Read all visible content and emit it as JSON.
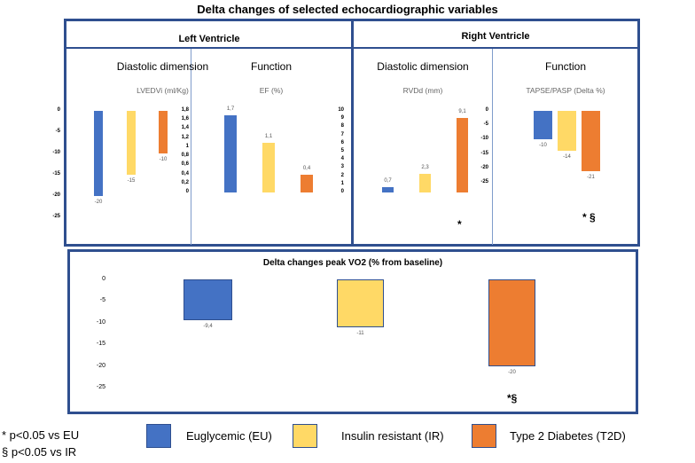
{
  "title": "Delta changes of selected echocardiographic variables",
  "colors": {
    "EU": "#4472C4",
    "IR": "#FFD966",
    "T2D": "#ED7D31"
  },
  "sections": {
    "left": "Left Ventricle",
    "right": "Right Ventricle"
  },
  "chart_data": [
    {
      "id": "lvedvi",
      "type": "bar",
      "section": "Left Ventricle",
      "subtitle": "Diastolic dimension",
      "ylabel": "LVEDVi (ml/Kg)",
      "categories": [
        "EU",
        "IR",
        "T2D"
      ],
      "values": [
        -20,
        -15,
        -10
      ],
      "value_labels": [
        "-20",
        "-15",
        "-10"
      ],
      "ylim": [
        -25,
        0
      ],
      "ticks": [
        "0",
        "-5",
        "-10",
        "-15",
        "-20",
        "-25"
      ],
      "tick_values": [
        0,
        -5,
        -10,
        -15,
        -20,
        -25
      ],
      "annotation": ""
    },
    {
      "id": "ef",
      "type": "bar",
      "section": "Left Ventricle",
      "subtitle": "Function",
      "ylabel": "EF (%)",
      "categories": [
        "EU",
        "IR",
        "T2D"
      ],
      "values": [
        1.7,
        1.1,
        0.4
      ],
      "value_labels": [
        "1,7",
        "1,1",
        "0,4"
      ],
      "ylim": [
        0,
        1.8
      ],
      "ticks": [
        "1,8",
        "1,6",
        "1,4",
        "1,2",
        "1",
        "0,8",
        "0,6",
        "0,4",
        "0,2",
        "0"
      ],
      "tick_values": [
        1.8,
        1.6,
        1.4,
        1.2,
        1,
        0.8,
        0.6,
        0.4,
        0.2,
        0
      ],
      "annotation": ""
    },
    {
      "id": "rvdd",
      "type": "bar",
      "section": "Right Ventricle",
      "subtitle": "Diastolic dimension",
      "ylabel": "RVDd (mm)",
      "categories": [
        "EU",
        "IR",
        "T2D"
      ],
      "values": [
        0.7,
        2.3,
        9.1
      ],
      "value_labels": [
        "0,7",
        "2,3",
        "9,1"
      ],
      "ylim": [
        0,
        10
      ],
      "ticks": [
        "10",
        "9",
        "8",
        "7",
        "6",
        "5",
        "4",
        "3",
        "2",
        "1",
        "0"
      ],
      "tick_values": [
        10,
        9,
        8,
        7,
        6,
        5,
        4,
        3,
        2,
        1,
        0
      ],
      "annotation": "*"
    },
    {
      "id": "tapse",
      "type": "bar",
      "section": "Right Ventricle",
      "subtitle": "Function",
      "ylabel": "TAPSE/PASP (Delta %)",
      "categories": [
        "EU",
        "IR",
        "T2D"
      ],
      "values": [
        -10,
        -14,
        -21
      ],
      "value_labels": [
        "-10",
        "-14",
        "-21"
      ],
      "ylim": [
        -25,
        0
      ],
      "ticks": [
        "0",
        "-5",
        "-10",
        "-15",
        "-20",
        "-25"
      ],
      "tick_values": [
        0,
        -5,
        -10,
        -15,
        -20,
        -25
      ],
      "annotation": "* §"
    },
    {
      "id": "vo2",
      "type": "bar",
      "title": "Delta changes peak VO2  (% from baseline)",
      "categories": [
        "EU",
        "IR",
        "T2D"
      ],
      "values": [
        -9.4,
        -11,
        -20
      ],
      "value_labels": [
        "-9,4",
        "-11",
        "-20"
      ],
      "ylim": [
        -25,
        0
      ],
      "ticks": [
        "0",
        "-5",
        "-10",
        "-15",
        "-20",
        "-25"
      ],
      "tick_values": [
        0,
        -5,
        -10,
        -15,
        -20,
        -25
      ],
      "annotation": "*§"
    }
  ],
  "legend": {
    "notes": [
      "* p<0.05 vs EU",
      "§ p<0.05 vs IR"
    ],
    "items": [
      {
        "key": "EU",
        "label": "Euglycemic (EU)"
      },
      {
        "key": "IR",
        "label": "Insulin resistant (IR)"
      },
      {
        "key": "T2D",
        "label": "Type 2 Diabetes (T2D)"
      }
    ]
  }
}
